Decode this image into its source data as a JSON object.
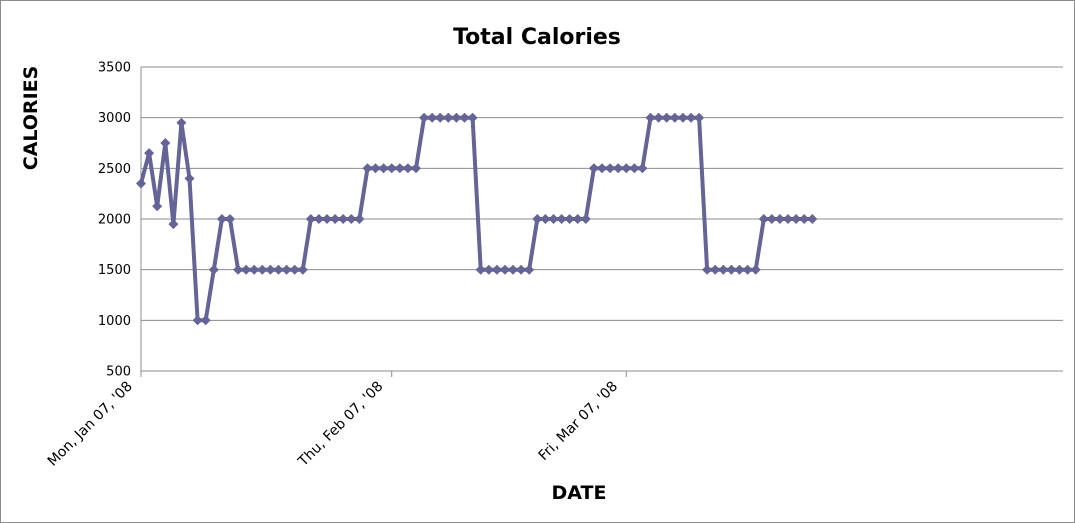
{
  "chart_data": {
    "type": "line",
    "title": "Total Calories",
    "xlabel": "DATE",
    "ylabel": "CALORIES",
    "ylim": [
      500,
      3500
    ],
    "yticks": [
      500,
      1000,
      1500,
      2000,
      2500,
      3000,
      3500
    ],
    "grid": true,
    "legend": "none",
    "x_start": "2008-01-07",
    "x_end": "2008-04-30",
    "xticks": [
      {
        "date": "2008-01-07",
        "label": "Mon, Jan 07, '08"
      },
      {
        "date": "2008-02-07",
        "label": "Thu, Feb 07, '08"
      },
      {
        "date": "2008-03-07",
        "label": "Fri, Mar 07, '08"
      }
    ],
    "series": [
      {
        "color": "#646496",
        "values": [
          2350,
          2650,
          2125,
          2750,
          1950,
          2950,
          2400,
          1000,
          1000,
          1500,
          2000,
          2000,
          1500,
          1500,
          1500,
          1500,
          1500,
          1500,
          1500,
          1500,
          1500,
          2000,
          2000,
          2000,
          2000,
          2000,
          2000,
          2000,
          2500,
          2500,
          2500,
          2500,
          2500,
          2500,
          2500,
          3000,
          3000,
          3000,
          3000,
          3000,
          3000,
          3000,
          1500,
          1500,
          1500,
          1500,
          1500,
          1500,
          1500,
          2000,
          2000,
          2000,
          2000,
          2000,
          2000,
          2000,
          2500,
          2500,
          2500,
          2500,
          2500,
          2500,
          2500,
          3000,
          3000,
          3000,
          3000,
          3000,
          3000,
          3000,
          1500,
          1500,
          1500,
          1500,
          1500,
          1500,
          1500,
          2000,
          2000,
          2000,
          2000,
          2000,
          2000,
          2000
        ]
      }
    ]
  }
}
